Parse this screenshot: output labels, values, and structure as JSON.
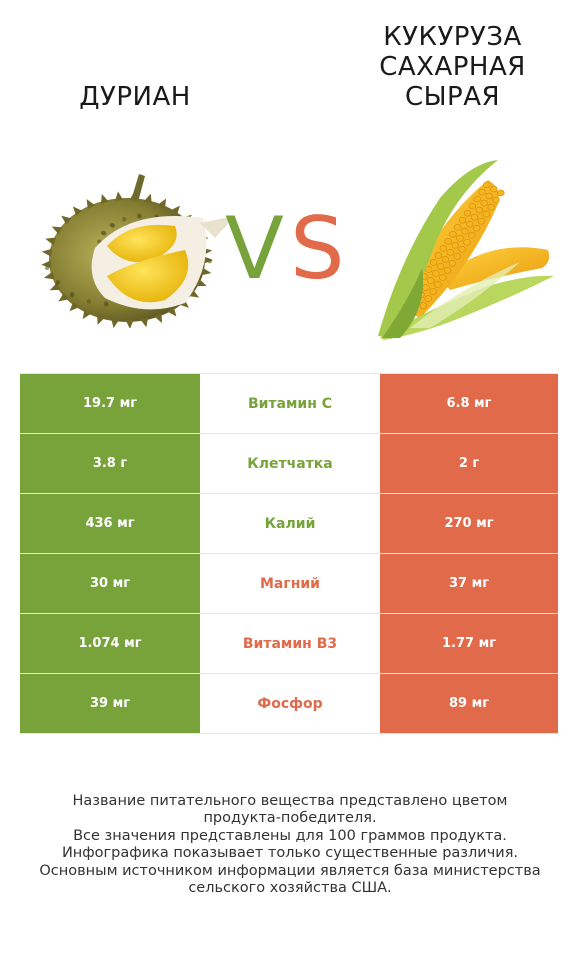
{
  "left_food": {
    "name": "ДУРИАН"
  },
  "right_food": {
    "name_lines": [
      "КУКУРУЗА",
      "САХАРНАЯ",
      "СЫРАЯ"
    ]
  },
  "vs": {
    "v": "V",
    "s": "S"
  },
  "colors": {
    "left": "#78a33a",
    "right": "#e06a4a"
  },
  "rows": [
    {
      "nutrient": "Витамин C",
      "left": "19.7 мг",
      "right": "6.8 мг",
      "winner": "left"
    },
    {
      "nutrient": "Клетчатка",
      "left": "3.8 г",
      "right": "2 г",
      "winner": "left"
    },
    {
      "nutrient": "Калий",
      "left": "436 мг",
      "right": "270 мг",
      "winner": "left"
    },
    {
      "nutrient": "Магний",
      "left": "30 мг",
      "right": "37 мг",
      "winner": "right"
    },
    {
      "nutrient": "Витамин B3",
      "left": "1.074 мг",
      "right": "1.77 мг",
      "winner": "right"
    },
    {
      "nutrient": "Фосфор",
      "left": "39 мг",
      "right": "89 мг",
      "winner": "right"
    }
  ],
  "footer_lines": [
    "Название питательного вещества представлено цветом",
    "продукта-победителя.",
    "Все значения представлены для 100 граммов продукта.",
    "Инфографика показывает только существенные различия.",
    "Основным источником информации является база министерства",
    "сельского хозяйства США."
  ]
}
